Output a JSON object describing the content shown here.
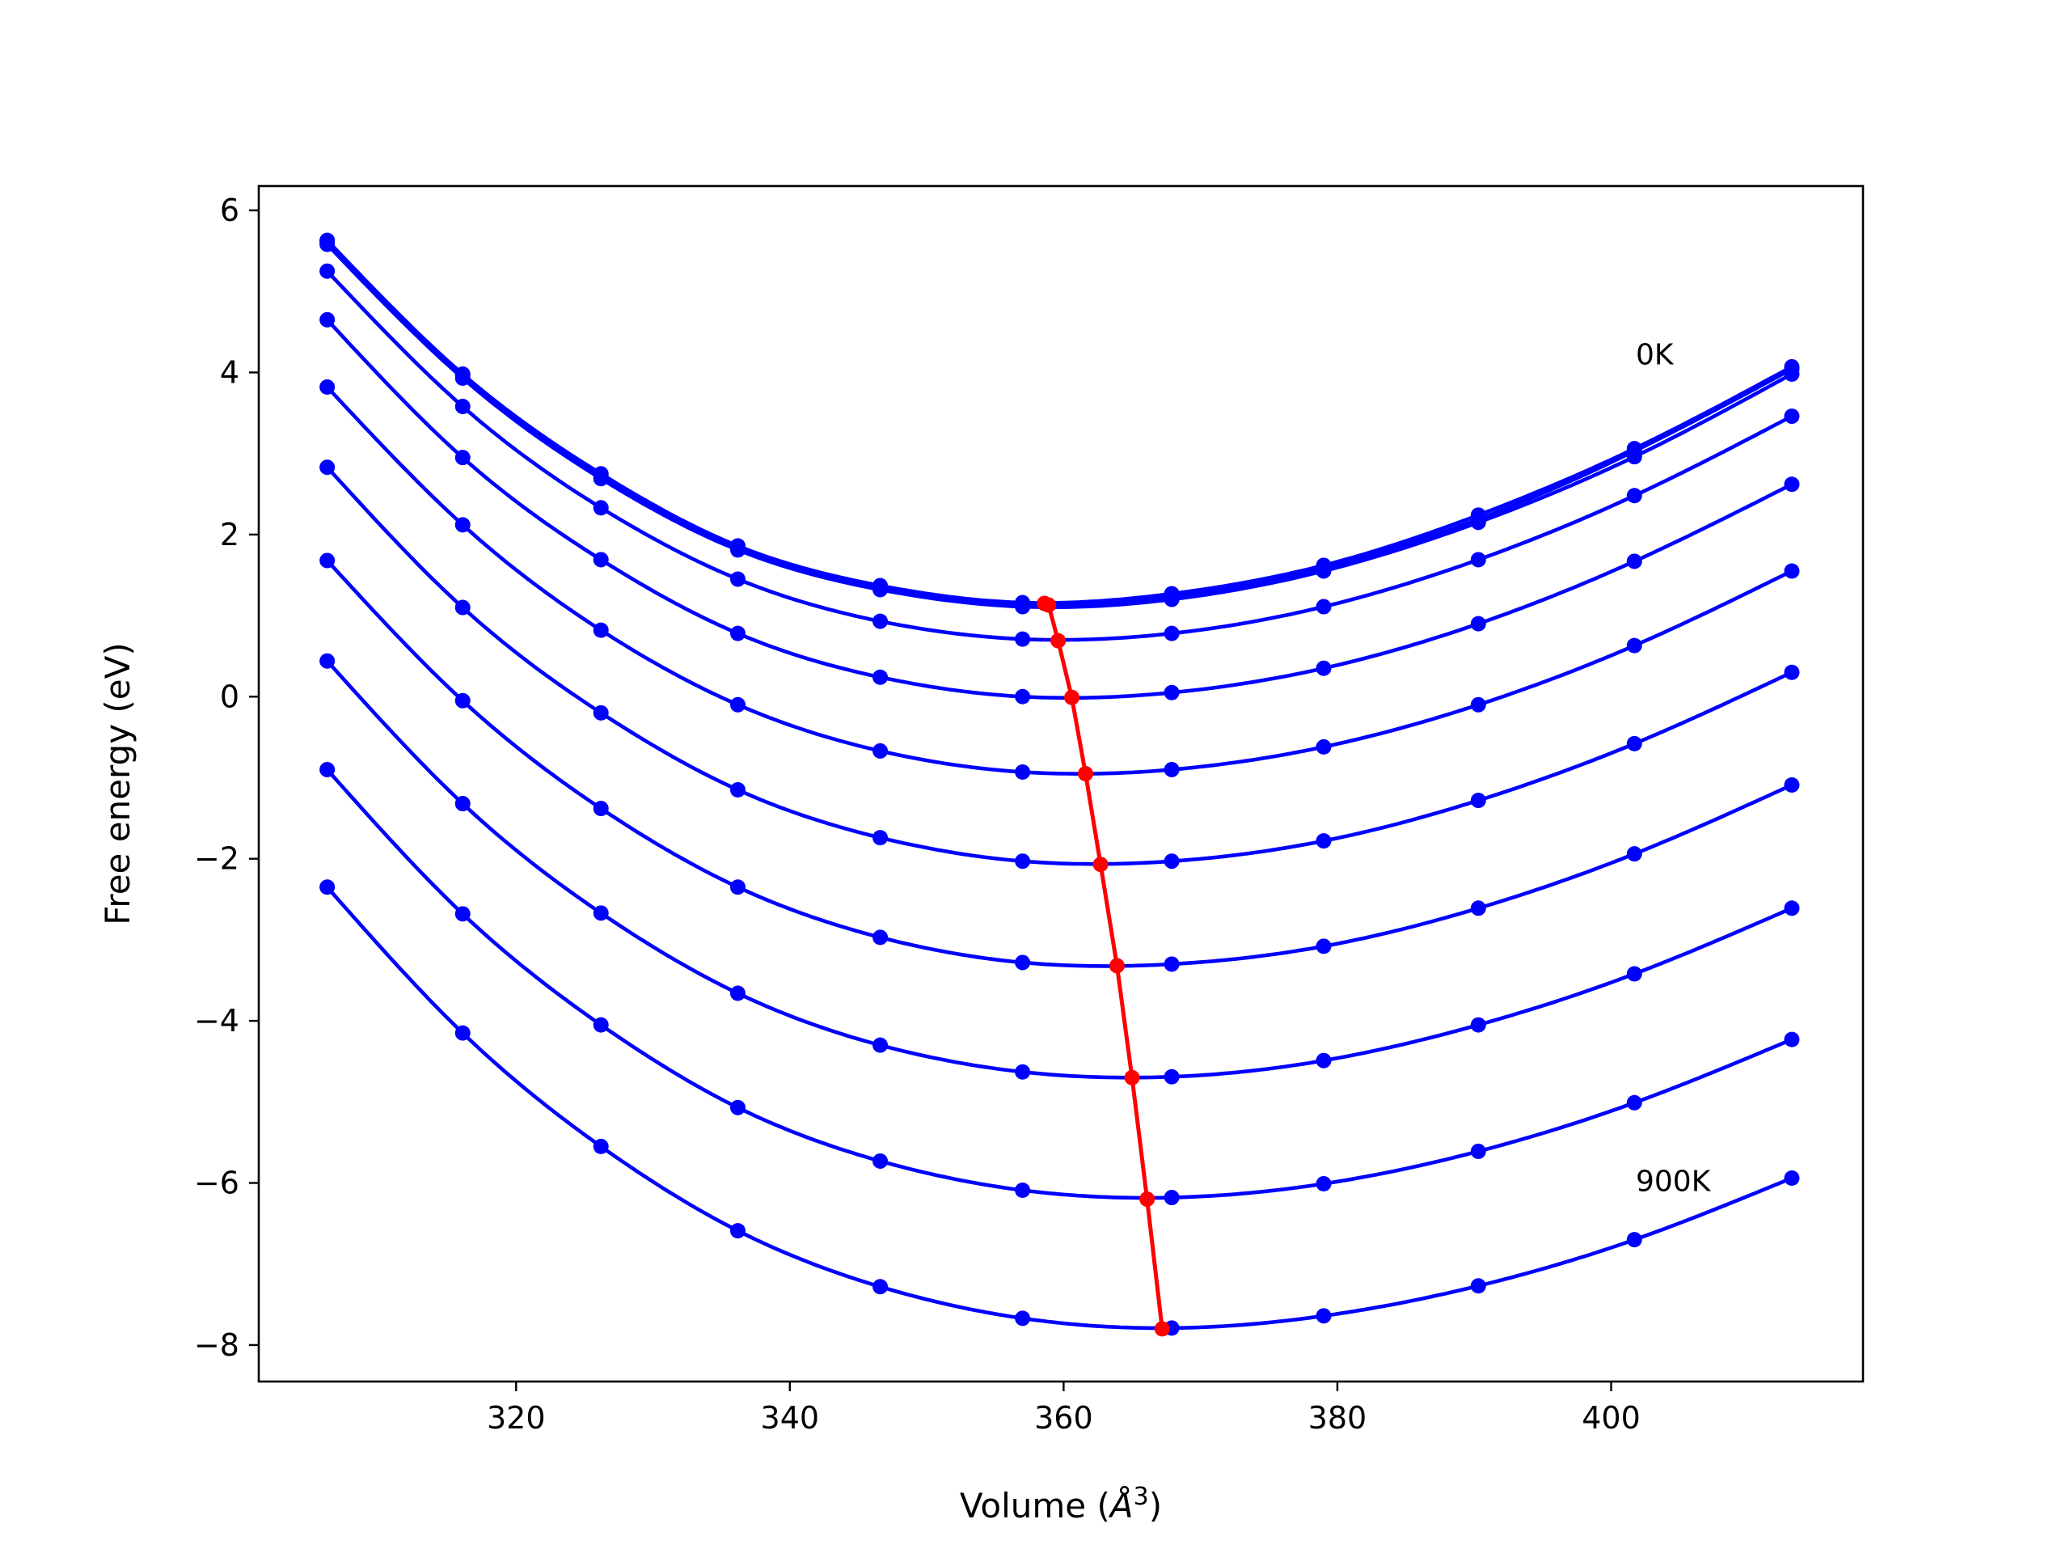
{
  "chart_data": {
    "type": "line",
    "title": "",
    "xlabel": "Volume (",
    "xlabel_unit": "Å",
    "xlabel_exponent": "3",
    "xlabel_close": ")",
    "ylabel": "Free energy (eV)",
    "xlim": [
      301.2,
      418.4
    ],
    "ylim": [
      -8.45,
      6.3
    ],
    "xticks": [
      320,
      340,
      360,
      380,
      400
    ],
    "xtick_labels": [
      "320",
      "340",
      "360",
      "380",
      "400"
    ],
    "yticks": [
      -8,
      -6,
      -4,
      -2,
      0,
      2,
      4,
      6
    ],
    "ytick_labels": [
      "−8",
      "−6",
      "−4",
      "−2",
      "0",
      "2",
      "4",
      "6"
    ],
    "grid": false,
    "x": [
      306.2,
      316.1,
      326.2,
      336.2,
      346.6,
      357.0,
      367.9,
      379.0,
      390.3,
      401.7,
      413.2
    ],
    "series": [
      {
        "color": "#0000ff",
        "values": [
          5.63,
          3.98,
          2.75,
          1.86,
          1.37,
          1.16,
          1.27,
          1.62,
          2.24,
          3.06,
          4.07
        ]
      },
      {
        "color": "#0000ff",
        "values": [
          5.61,
          3.96,
          2.73,
          1.84,
          1.35,
          1.14,
          1.24,
          1.59,
          2.19,
          3.03,
          4.04
        ]
      },
      {
        "color": "#0000ff",
        "values": [
          5.58,
          3.93,
          2.69,
          1.81,
          1.32,
          1.11,
          1.2,
          1.55,
          2.15,
          2.96,
          3.98
        ]
      },
      {
        "color": "#0000ff",
        "values": [
          5.25,
          3.58,
          2.33,
          1.45,
          0.93,
          0.71,
          0.78,
          1.11,
          1.69,
          2.48,
          3.46
        ]
      },
      {
        "color": "#0000ff",
        "values": [
          4.65,
          2.95,
          1.69,
          0.78,
          0.24,
          0.0,
          0.05,
          0.35,
          0.9,
          1.67,
          2.62
        ]
      },
      {
        "color": "#0000ff",
        "values": [
          3.82,
          2.12,
          0.82,
          -0.1,
          -0.67,
          -0.93,
          -0.9,
          -0.62,
          -0.1,
          0.63,
          1.55
        ]
      },
      {
        "color": "#0000ff",
        "values": [
          2.83,
          1.1,
          -0.2,
          -1.15,
          -1.74,
          -2.03,
          -2.03,
          -1.78,
          -1.28,
          -0.58,
          0.3
        ]
      },
      {
        "color": "#0000ff",
        "values": [
          1.68,
          -0.05,
          -1.38,
          -2.35,
          -2.97,
          -3.28,
          -3.3,
          -3.08,
          -2.61,
          -1.94,
          -1.09
        ]
      },
      {
        "color": "#0000ff",
        "values": [
          0.44,
          -1.32,
          -2.67,
          -3.66,
          -4.3,
          -4.63,
          -4.69,
          -4.49,
          -4.05,
          -3.42,
          -2.61
        ]
      },
      {
        "color": "#0000ff",
        "values": [
          -0.9,
          -2.68,
          -4.05,
          -5.07,
          -5.73,
          -6.09,
          -6.18,
          -6.01,
          -5.61,
          -5.01,
          -4.23
        ]
      },
      {
        "color": "#0000ff",
        "values": [
          -2.35,
          -4.15,
          -5.55,
          -6.59,
          -7.28,
          -7.67,
          -7.79,
          -7.64,
          -7.27,
          -6.7,
          -5.94
        ]
      }
    ],
    "minima": {
      "color": "#ff0000",
      "x": [
        358.6,
        358.9,
        359.6,
        360.6,
        361.6,
        362.7,
        363.9,
        365.0,
        366.1,
        367.2
      ],
      "y": [
        1.15,
        1.13,
        0.69,
        -0.01,
        -0.95,
        -2.07,
        -3.32,
        -4.7,
        -6.2,
        -7.8
      ]
    },
    "annotations": [
      {
        "text": "0K",
        "x": 401.8,
        "y": 4.1
      },
      {
        "text": "900K",
        "x": 401.8,
        "y": -6.1
      }
    ]
  }
}
